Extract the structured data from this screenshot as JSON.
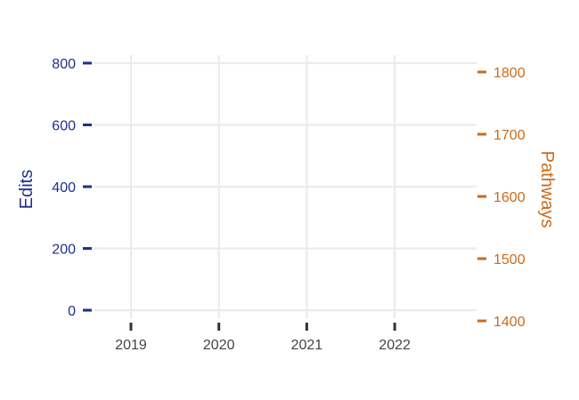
{
  "chart_data": {
    "type": "line",
    "title": "",
    "xlabel": "",
    "ylabel": "Edits",
    "y2label": "Pathways",
    "x_ticks": [
      "2019",
      "2020",
      "2021",
      "2022"
    ],
    "ylim": [
      0,
      800
    ],
    "y_ticks": [
      "0",
      "200",
      "400",
      "600",
      "800"
    ],
    "y2lim": [
      1400,
      1800
    ],
    "y2_ticks": [
      "1400",
      "1500",
      "1600",
      "1700",
      "1800"
    ],
    "series": [],
    "grid": true,
    "colors": {
      "left_axis": "#1f2f8a",
      "right_axis": "#cc6a1b",
      "grid": "#ebebeb"
    }
  }
}
